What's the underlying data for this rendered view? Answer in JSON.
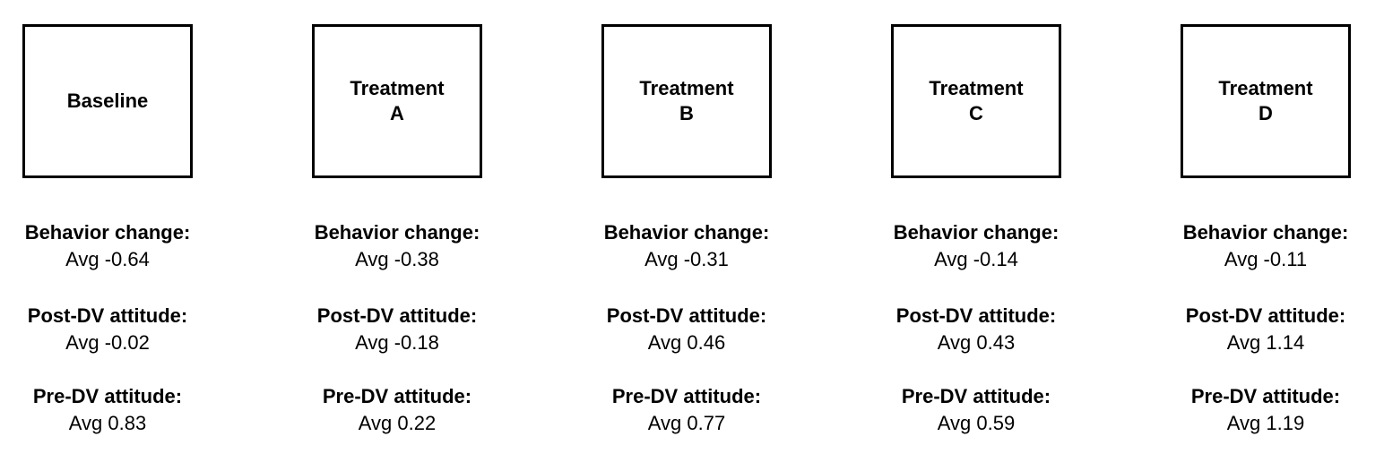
{
  "conditions": [
    {
      "label": "Baseline",
      "behavior_change_label": "Behavior change:",
      "behavior_change_value": "Avg -0.64",
      "post_dv_label": "Post-DV attitude:",
      "post_dv_value": "Avg -0.02",
      "pre_dv_label": "Pre-DV attitude:",
      "pre_dv_value": "Avg 0.83"
    },
    {
      "label": "Treatment\nA",
      "behavior_change_label": "Behavior change:",
      "behavior_change_value": "Avg -0.38",
      "post_dv_label": "Post-DV attitude:",
      "post_dv_value": "Avg -0.18",
      "pre_dv_label": "Pre-DV attitude:",
      "pre_dv_value": "Avg 0.22"
    },
    {
      "label": "Treatment\nB",
      "behavior_change_label": "Behavior change:",
      "behavior_change_value": "Avg -0.31",
      "post_dv_label": "Post-DV attitude:",
      "post_dv_value": "Avg 0.46",
      "pre_dv_label": "Pre-DV attitude:",
      "pre_dv_value": "Avg 0.77"
    },
    {
      "label": "Treatment\nC",
      "behavior_change_label": "Behavior change:",
      "behavior_change_value": "Avg -0.14",
      "post_dv_label": "Post-DV attitude:",
      "post_dv_value": "Avg 0.43",
      "pre_dv_label": "Pre-DV attitude:",
      "pre_dv_value": "Avg 0.59"
    },
    {
      "label": "Treatment\nD",
      "behavior_change_label": "Behavior change:",
      "behavior_change_value": "Avg -0.11",
      "post_dv_label": "Post-DV attitude:",
      "post_dv_value": "Avg 1.14",
      "pre_dv_label": "Pre-DV attitude:",
      "pre_dv_value": "Avg 1.19"
    }
  ]
}
